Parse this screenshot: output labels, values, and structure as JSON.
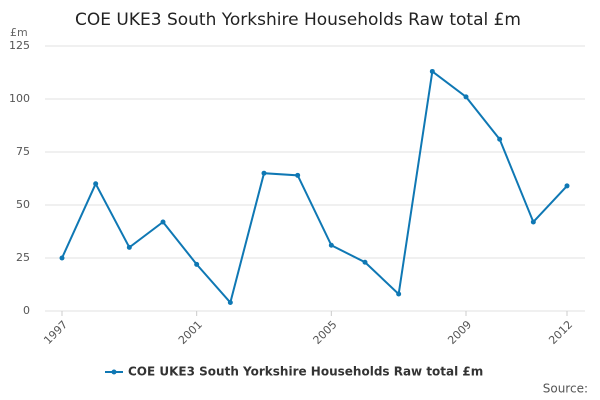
{
  "chart_data": {
    "type": "line",
    "title": "COE UKE3 South Yorkshire Households Raw total £m",
    "y_label": "£m",
    "source": "Source:",
    "x": [
      1997,
      1998,
      1999,
      2000,
      2001,
      2002,
      2003,
      2004,
      2005,
      2006,
      2007,
      2008,
      2009,
      2010,
      2011,
      2012
    ],
    "series": [
      {
        "name": "COE UKE3 South Yorkshire Households Raw total £m",
        "color": "#0f78b4",
        "values": [
          25,
          60,
          30,
          42,
          22,
          4,
          65,
          64,
          31,
          23,
          8,
          113,
          101,
          81,
          42,
          59
        ]
      }
    ],
    "xlim": [
      1997,
      2012
    ],
    "xticks": [
      1997,
      2001,
      2005,
      2009,
      2012
    ],
    "ylim": [
      0,
      125
    ],
    "yticks": [
      0,
      25,
      50,
      75,
      100,
      125
    ],
    "grid": true
  }
}
